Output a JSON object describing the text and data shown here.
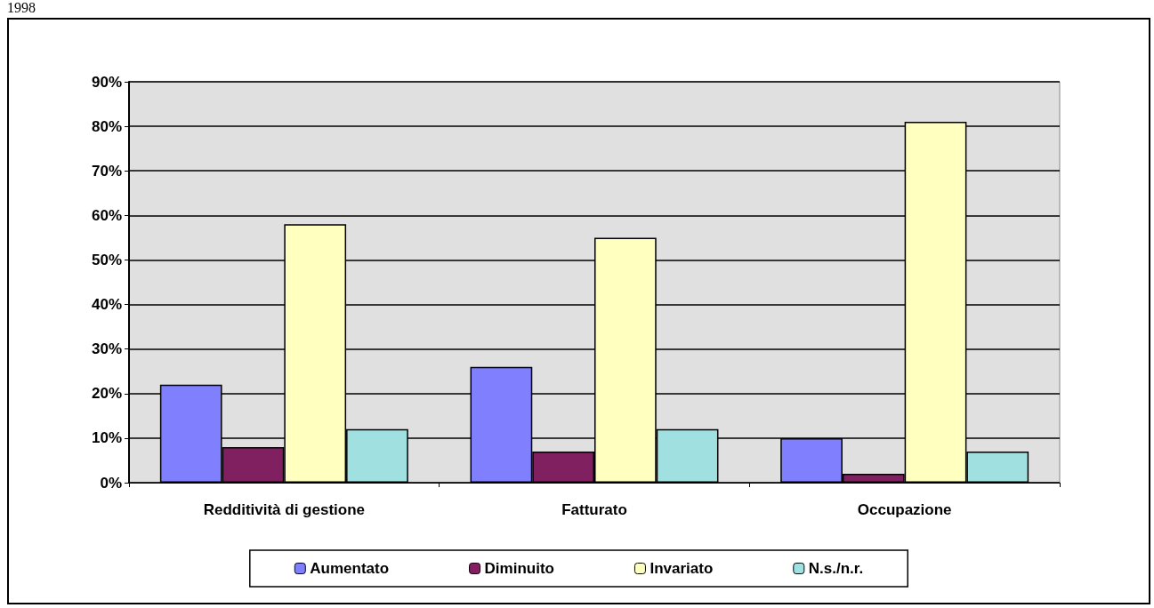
{
  "chart_data": {
    "type": "bar",
    "title": "1998",
    "categories": [
      "Redditività di gestione",
      "Fatturato",
      "Occupazione"
    ],
    "series": [
      {
        "name": "Aumentato",
        "color": "#8080ff",
        "values": [
          22,
          26,
          10
        ]
      },
      {
        "name": "Diminuito",
        "color": "#802060",
        "values": [
          8,
          7,
          2
        ]
      },
      {
        "name": "Invariato",
        "color": "#ffffc0",
        "values": [
          58,
          55,
          81
        ]
      },
      {
        "name": "N.s./n.r.",
        "color": "#a0e0e0",
        "values": [
          12,
          12,
          7
        ]
      }
    ],
    "ylim": [
      0,
      90
    ],
    "yticks": [
      {
        "value": 0,
        "label": "0%"
      },
      {
        "value": 10,
        "label": "10%"
      },
      {
        "value": 20,
        "label": "20%"
      },
      {
        "value": 30,
        "label": "30%"
      },
      {
        "value": 40,
        "label": "40%"
      },
      {
        "value": 50,
        "label": "50%"
      },
      {
        "value": 60,
        "label": "60%"
      },
      {
        "value": 70,
        "label": "70%"
      },
      {
        "value": 80,
        "label": "80%"
      },
      {
        "value": 90,
        "label": "90%"
      }
    ],
    "grid": "y",
    "legend": "bottom"
  }
}
